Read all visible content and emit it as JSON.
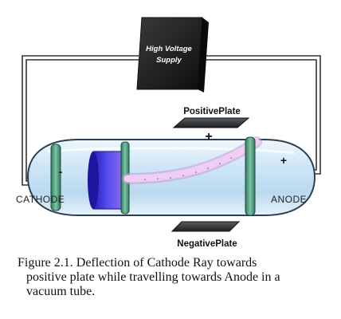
{
  "diagram": {
    "supply_label_line1": "High Voltage",
    "supply_label_line2": "Supply",
    "positive_plate_label": "PositivePlate",
    "negative_plate_label": "NegativePlate",
    "positive_sign": "+",
    "cathode_sign": "-",
    "anode_sign": "+",
    "cathode_label": "CATHODE",
    "anode_label": "ANODE",
    "charge_sign": "-"
  },
  "caption": {
    "line1": "Figure 2.1. Deflection of Cathode Ray towards",
    "line2": "positive plate while travelling towards Anode in a",
    "line3": "vacuum tube."
  },
  "colors": {
    "tube_glass": "#cfe6f7",
    "tube_outline": "#2c3e50",
    "cathode_disk": "#4b3fd6",
    "ray": "#e7b9ee",
    "anode_ring": "#4f9a7c",
    "plate": "#2f3133",
    "supply_box": "#151515",
    "wire": "#333333"
  }
}
